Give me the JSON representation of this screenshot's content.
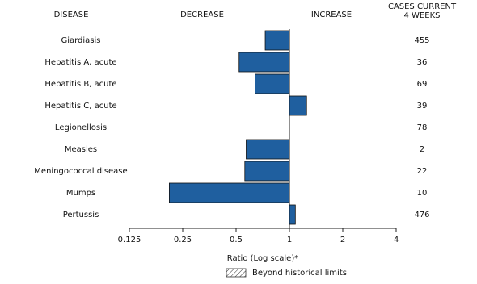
{
  "chart_data": {
    "type": "bar",
    "orientation": "horizontal",
    "category_header": "DISEASE",
    "decrease_label": "DECREASE",
    "increase_label": "INCREASE",
    "cases_header": [
      "CASES CURRENT",
      "4 WEEKS"
    ],
    "categories": [
      "Giardiasis",
      "Hepatitis A, acute",
      "Hepatitis B, acute",
      "Hepatitis C, acute",
      "Legionellosis",
      "Measles",
      "Meningococcal disease",
      "Mumps",
      "Pertussis"
    ],
    "values": [
      0.73,
      0.52,
      0.64,
      1.25,
      1.0,
      0.57,
      0.56,
      0.21,
      1.08
    ],
    "cases": [
      455,
      36,
      69,
      39,
      78,
      2,
      22,
      10,
      476
    ],
    "color": "#1f5f9f",
    "log_scale": true,
    "xlim": [
      0.125,
      4
    ],
    "xticks": [
      0.125,
      0.25,
      0.5,
      1,
      2,
      4
    ],
    "xlabel": "Ratio (Log scale)*",
    "legend_label": "Beyond historical limits"
  }
}
